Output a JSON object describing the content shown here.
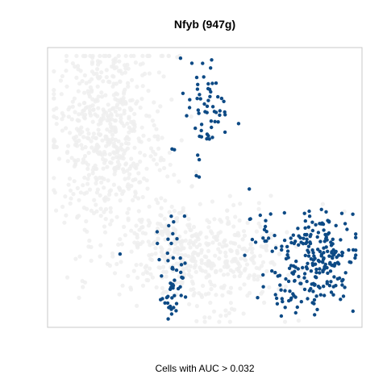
{
  "chart_data": {
    "type": "scatter",
    "title": "Nfyb (947g)",
    "xlabel": "Cells with AUC > 0.032",
    "ylabel": "",
    "xlim": [
      0,
      100
    ],
    "ylim": [
      0,
      100
    ],
    "grid": false,
    "legend": "none",
    "colors": {
      "background_cells": "#eeeeee",
      "highlighted_cells": "#0d4a85",
      "panel_border": "#c8c8c8"
    },
    "background_regions": [
      {
        "cx": 17,
        "cy": 72,
        "sx": 8,
        "sy": 16,
        "n": 420
      },
      {
        "cx": 27,
        "cy": 64,
        "sx": 9,
        "sy": 22,
        "n": 160
      },
      {
        "cx": 48,
        "cy": 26,
        "sx": 14,
        "sy": 8,
        "n": 300
      },
      {
        "cx": 60,
        "cy": 20,
        "sx": 9,
        "sy": 10,
        "n": 110
      },
      {
        "cx": 39,
        "cy": 33,
        "sx": 6,
        "sy": 7,
        "n": 70
      }
    ],
    "highlighted_regions": [
      {
        "cx": 51,
        "cy": 78,
        "sx": 4,
        "sy": 10,
        "n": 60
      },
      {
        "cx": 40,
        "cy": 63,
        "sx": 0.5,
        "sy": 0.5,
        "n": 2
      },
      {
        "cx": 40,
        "cy": 14,
        "sx": 2,
        "sy": 6,
        "n": 45
      },
      {
        "cx": 39,
        "cy": 33,
        "sx": 2.5,
        "sy": 4,
        "n": 10
      },
      {
        "cx": 69,
        "cy": 35,
        "sx": 3,
        "sy": 6,
        "n": 20
      },
      {
        "cx": 86,
        "cy": 25,
        "sx": 5.5,
        "sy": 8,
        "n": 210
      },
      {
        "cx": 75,
        "cy": 14,
        "sx": 4,
        "sy": 6,
        "n": 25
      },
      {
        "cx": 23,
        "cy": 26,
        "sx": 0.4,
        "sy": 0.4,
        "n": 1
      }
    ]
  }
}
